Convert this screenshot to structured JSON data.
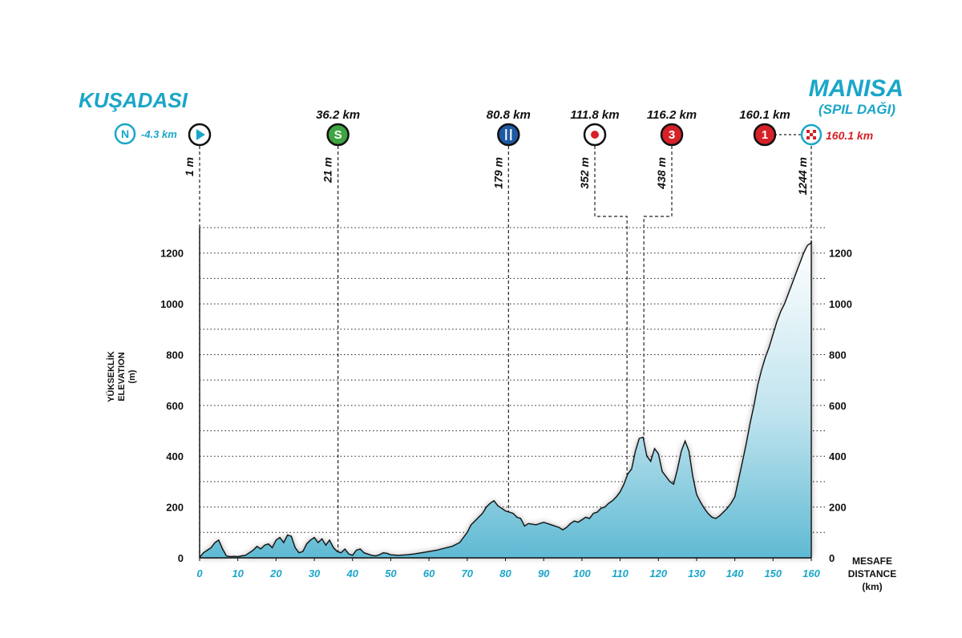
{
  "start_city": "KUŞADASI",
  "finish_city": "MANISA",
  "finish_subtitle": "(SPIL DAĞI)",
  "neutral": {
    "letter": "N",
    "label": "-4.3 km",
    "color": "#1aa6c8"
  },
  "finish_km_label": "160.1 km",
  "colors": {
    "accent": "#1aa6c8",
    "profile_dark": "#5fbad3",
    "profile_light": "#ffffff",
    "red": "#d62128",
    "green": "#3ea540",
    "blue": "#1d5aa5"
  },
  "markers": [
    {
      "km": 0,
      "km_label": "",
      "elev_label": "1 m",
      "icon": "start-flag-icon",
      "symbol": "▶",
      "fill": "#ffffff",
      "symbol_color": "#1aa6c8"
    },
    {
      "km": 36.2,
      "km_label": "36.2 km",
      "elev_label": "21 m",
      "icon": "sprint-icon",
      "symbol": "S",
      "fill": "#3ea540",
      "symbol_color": "#ffffff"
    },
    {
      "km": 80.8,
      "km_label": "80.8 km",
      "elev_label": "179 m",
      "icon": "feed-zone-icon",
      "symbol": "🍴",
      "fill": "#1d5aa5",
      "symbol_color": "#ffffff"
    },
    {
      "km": 111.8,
      "km_label": "111.8 km",
      "elev_label": "352 m",
      "icon": "bonus-sprint-icon",
      "symbol": "✹",
      "fill": "#ffffff",
      "symbol_color": "#d62128"
    },
    {
      "km": 116.2,
      "km_label": "116.2 km",
      "elev_label": "438 m",
      "icon": "climb-cat3-icon",
      "symbol": "3",
      "fill": "#d62128",
      "symbol_color": "#ffffff"
    },
    {
      "km": 160.1,
      "km_label": "160.1 km",
      "elev_label": "1244 m",
      "icon": "climb-cat1-icon",
      "symbol": "1",
      "fill": "#d62128",
      "symbol_color": "#ffffff"
    }
  ],
  "chart_data": {
    "type": "area",
    "title": "",
    "ylabel_lines": [
      "YÜKSEKLİK",
      "ELEVATION",
      "(m)"
    ],
    "xlabel_lines": [
      "MESAFE",
      "DISTANCE",
      "(km)"
    ],
    "xlim": [
      0,
      160
    ],
    "ylim": [
      0,
      1300
    ],
    "x_ticks": [
      0,
      10,
      20,
      30,
      40,
      50,
      60,
      70,
      80,
      90,
      100,
      110,
      120,
      130,
      140,
      150,
      160
    ],
    "y_ticks": [
      0,
      200,
      400,
      600,
      800,
      1000,
      1200
    ],
    "grid_lines": [
      100,
      200,
      300,
      400,
      500,
      600,
      700,
      800,
      900,
      1000,
      1100,
      1200,
      1300
    ],
    "profile": [
      [
        0,
        2
      ],
      [
        1,
        20
      ],
      [
        2,
        30
      ],
      [
        3,
        40
      ],
      [
        4,
        60
      ],
      [
        5,
        70
      ],
      [
        6,
        35
      ],
      [
        7,
        8
      ],
      [
        8,
        5
      ],
      [
        9,
        6
      ],
      [
        10,
        5
      ],
      [
        11,
        8
      ],
      [
        12,
        10
      ],
      [
        13,
        20
      ],
      [
        14,
        30
      ],
      [
        15,
        45
      ],
      [
        16,
        35
      ],
      [
        17,
        50
      ],
      [
        18,
        55
      ],
      [
        19,
        40
      ],
      [
        20,
        70
      ],
      [
        21,
        80
      ],
      [
        22,
        60
      ],
      [
        23,
        90
      ],
      [
        24,
        85
      ],
      [
        25,
        40
      ],
      [
        26,
        20
      ],
      [
        27,
        25
      ],
      [
        28,
        55
      ],
      [
        29,
        70
      ],
      [
        30,
        80
      ],
      [
        31,
        60
      ],
      [
        32,
        75
      ],
      [
        33,
        50
      ],
      [
        34,
        70
      ],
      [
        35,
        40
      ],
      [
        36,
        25
      ],
      [
        37,
        20
      ],
      [
        38,
        35
      ],
      [
        39,
        15
      ],
      [
        40,
        10
      ],
      [
        41,
        30
      ],
      [
        42,
        35
      ],
      [
        43,
        20
      ],
      [
        44,
        15
      ],
      [
        45,
        10
      ],
      [
        46,
        8
      ],
      [
        47,
        12
      ],
      [
        48,
        20
      ],
      [
        49,
        18
      ],
      [
        50,
        12
      ],
      [
        52,
        10
      ],
      [
        54,
        12
      ],
      [
        56,
        15
      ],
      [
        58,
        20
      ],
      [
        60,
        25
      ],
      [
        62,
        30
      ],
      [
        64,
        38
      ],
      [
        66,
        45
      ],
      [
        68,
        60
      ],
      [
        70,
        100
      ],
      [
        71,
        130
      ],
      [
        72,
        145
      ],
      [
        73,
        160
      ],
      [
        74,
        175
      ],
      [
        75,
        200
      ],
      [
        76,
        215
      ],
      [
        77,
        225
      ],
      [
        78,
        205
      ],
      [
        79,
        195
      ],
      [
        80,
        185
      ],
      [
        81,
        180
      ],
      [
        82,
        175
      ],
      [
        83,
        160
      ],
      [
        84,
        155
      ],
      [
        85,
        125
      ],
      [
        86,
        135
      ],
      [
        88,
        130
      ],
      [
        90,
        140
      ],
      [
        92,
        130
      ],
      [
        94,
        120
      ],
      [
        95,
        110
      ],
      [
        96,
        120
      ],
      [
        97,
        135
      ],
      [
        98,
        145
      ],
      [
        99,
        140
      ],
      [
        100,
        150
      ],
      [
        101,
        160
      ],
      [
        102,
        155
      ],
      [
        103,
        175
      ],
      [
        104,
        180
      ],
      [
        105,
        195
      ],
      [
        106,
        200
      ],
      [
        107,
        215
      ],
      [
        108,
        225
      ],
      [
        109,
        240
      ],
      [
        110,
        260
      ],
      [
        111,
        290
      ],
      [
        112,
        330
      ],
      [
        113,
        350
      ],
      [
        114,
        420
      ],
      [
        115,
        470
      ],
      [
        116,
        475
      ],
      [
        117,
        400
      ],
      [
        118,
        380
      ],
      [
        119,
        430
      ],
      [
        120,
        410
      ],
      [
        121,
        340
      ],
      [
        122,
        320
      ],
      [
        123,
        300
      ],
      [
        124,
        290
      ],
      [
        125,
        350
      ],
      [
        126,
        420
      ],
      [
        127,
        460
      ],
      [
        128,
        420
      ],
      [
        129,
        320
      ],
      [
        130,
        250
      ],
      [
        131,
        220
      ],
      [
        132,
        195
      ],
      [
        133,
        175
      ],
      [
        134,
        160
      ],
      [
        135,
        155
      ],
      [
        136,
        165
      ],
      [
        137,
        180
      ],
      [
        138,
        195
      ],
      [
        139,
        215
      ],
      [
        140,
        240
      ],
      [
        141,
        310
      ],
      [
        142,
        380
      ],
      [
        143,
        450
      ],
      [
        144,
        530
      ],
      [
        145,
        600
      ],
      [
        146,
        680
      ],
      [
        147,
        740
      ],
      [
        148,
        790
      ],
      [
        149,
        830
      ],
      [
        150,
        880
      ],
      [
        151,
        930
      ],
      [
        152,
        970
      ],
      [
        153,
        1000
      ],
      [
        154,
        1040
      ],
      [
        155,
        1080
      ],
      [
        156,
        1120
      ],
      [
        157,
        1160
      ],
      [
        158,
        1200
      ],
      [
        159,
        1230
      ],
      [
        160,
        1240
      ],
      [
        160.1,
        1244
      ]
    ]
  }
}
